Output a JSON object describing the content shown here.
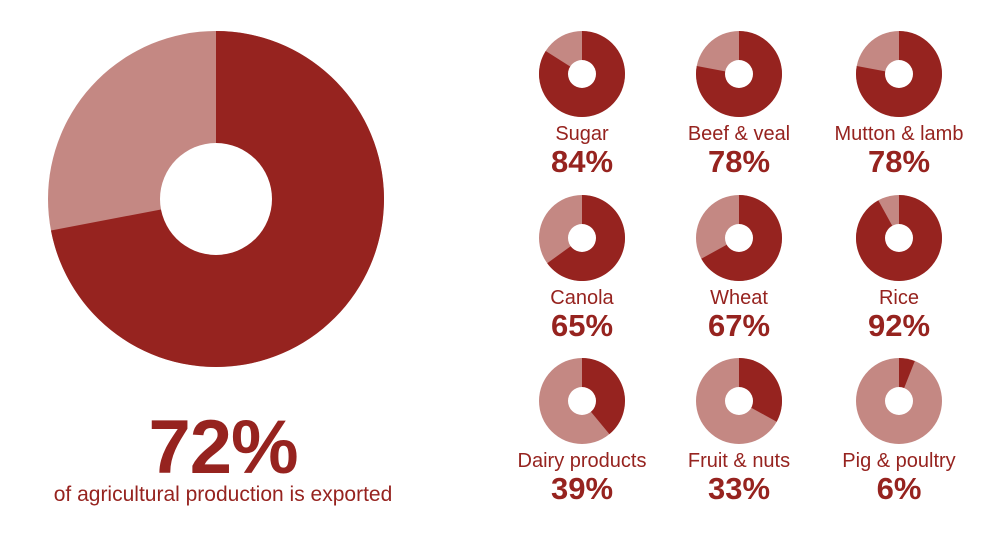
{
  "colors": {
    "primary": "#96231f",
    "secondary": "#c48883",
    "background": "#ffffff"
  },
  "main": {
    "percent": "72%",
    "caption": "of agricultural production is exported"
  },
  "chart_data": {
    "type": "pie",
    "main": {
      "value": 72
    },
    "items": [
      {
        "label": "Sugar",
        "value": 84,
        "display": "84%"
      },
      {
        "label": "Beef & veal",
        "value": 78,
        "display": "78%"
      },
      {
        "label": "Mutton & lamb",
        "value": 78,
        "display": "78%"
      },
      {
        "label": "Canola",
        "value": 65,
        "display": "65%"
      },
      {
        "label": "Wheat",
        "value": 67,
        "display": "67%"
      },
      {
        "label": "Rice",
        "value": 92,
        "display": "92%"
      },
      {
        "label": "Dairy products",
        "value": 39,
        "display": "39%"
      },
      {
        "label": "Fruit & nuts",
        "value": 33,
        "display": "33%"
      },
      {
        "label": "Pig & poultry",
        "value": 6,
        "display": "6%"
      }
    ]
  }
}
